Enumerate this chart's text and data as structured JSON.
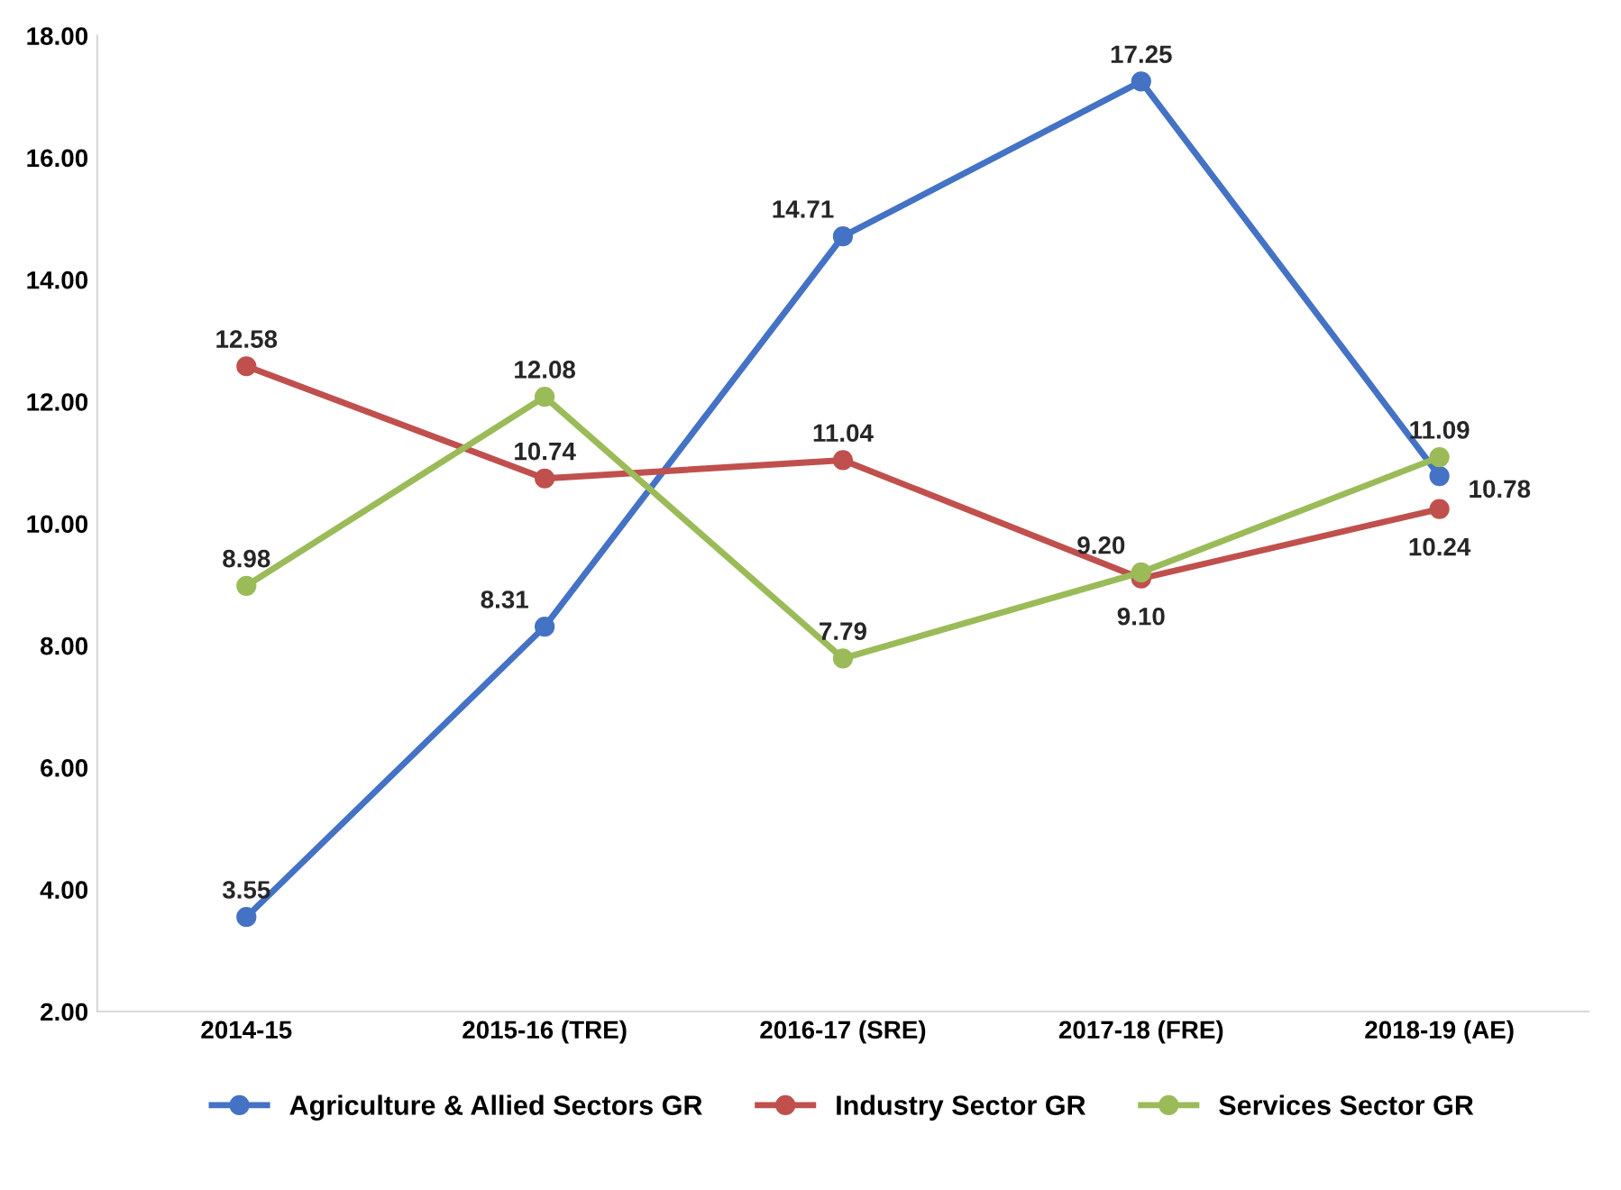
{
  "chart_data": {
    "type": "line",
    "categories": [
      "2014-15",
      "2015-16 (TRE)",
      "2016-17 (SRE)",
      "2017-18 (FRE)",
      "2018-19 (AE)"
    ],
    "series": [
      {
        "name": "Agriculture & Allied Sectors GR",
        "color": "#4472c4",
        "values": [
          3.55,
          8.31,
          14.71,
          17.25,
          10.78
        ],
        "value_labels": [
          "3.55",
          "8.31",
          "14.71",
          "17.25",
          "10.78"
        ]
      },
      {
        "name": "Industry Sector GR",
        "color": "#c0504d",
        "values": [
          12.58,
          10.74,
          11.04,
          9.1,
          10.24
        ],
        "value_labels": [
          "12.58",
          "10.74",
          "11.04",
          "9.10",
          "10.24"
        ]
      },
      {
        "name": "Services Sector GR",
        "color": "#9bbb59",
        "values": [
          8.98,
          12.08,
          7.79,
          9.2,
          11.09
        ],
        "value_labels": [
          "8.98",
          "12.08",
          "7.79",
          "9.20",
          "11.09"
        ]
      }
    ],
    "ylim": [
      2,
      18
    ],
    "yticks": [
      {
        "value": 2,
        "label": "2.00"
      },
      {
        "value": 4,
        "label": "4.00"
      },
      {
        "value": 6,
        "label": "6.00"
      },
      {
        "value": 8,
        "label": "8.00"
      },
      {
        "value": 10,
        "label": "10.00"
      },
      {
        "value": 12,
        "label": "12.00"
      },
      {
        "value": 14,
        "label": "14.00"
      },
      {
        "value": 16,
        "label": "16.00"
      },
      {
        "value": 18,
        "label": "18.00"
      }
    ],
    "legend": "bottom",
    "grid": false,
    "marker": "circle",
    "line_style": "solid"
  }
}
